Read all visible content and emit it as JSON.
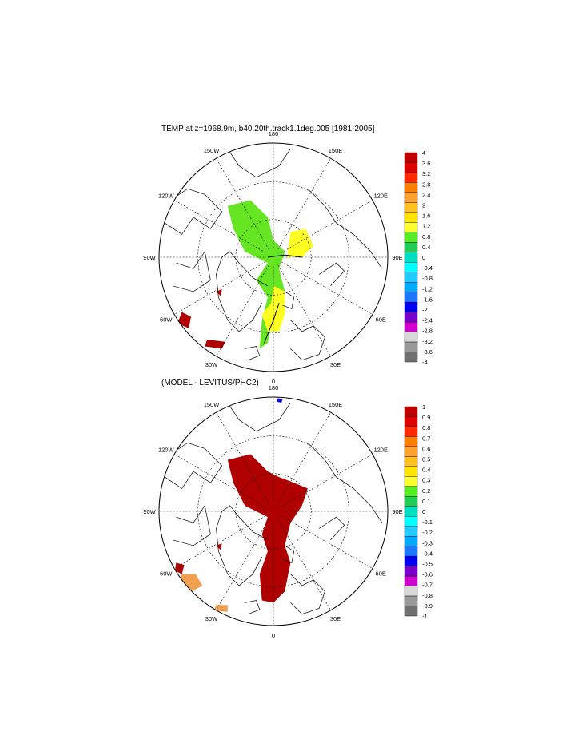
{
  "panels": [
    {
      "id": "top",
      "title": "TEMP at z=1968.9m, b40.20th.track1.1deg.005 [1981-2005]",
      "longitude_labels": [
        "180",
        "150E",
        "120E",
        "90E",
        "60E",
        "30E",
        "0",
        "30W",
        "60W",
        "90W",
        "120W",
        "150W"
      ],
      "colorbar": {
        "tick_labels": [
          "4",
          "3.6",
          "3.2",
          "2.8",
          "2.4",
          "2",
          "1.6",
          "1.2",
          "0.8",
          "0.4",
          "0",
          "-0.4",
          "-0.8",
          "-1.2",
          "-1.6",
          "-2",
          "-2.4",
          "-2.8",
          "-3.2",
          "-3.6",
          "-4"
        ],
        "colors": [
          "#c00000",
          "#e00000",
          "#ff2a00",
          "#ff7f00",
          "#ffa030",
          "#ffc020",
          "#ffe600",
          "#ffff30",
          "#55ee22",
          "#22cc55",
          "#00e0c0",
          "#00ffff",
          "#22ccff",
          "#00aaff",
          "#1e78ff",
          "#0000ee",
          "#7a00cc",
          "#d000d0",
          "#d8d8d8",
          "#999999",
          "#707070"
        ]
      }
    },
    {
      "id": "bottom",
      "title": "(MODEL - LEVITUS/PHC2)",
      "longitude_labels": [
        "180",
        "150E",
        "120E",
        "90E",
        "60E",
        "30E",
        "0",
        "30W",
        "60W",
        "90W",
        "120W",
        "150W"
      ],
      "colorbar": {
        "tick_labels": [
          "1",
          "0.9",
          "0.8",
          "0.7",
          "0.6",
          "0.5",
          "0.4",
          "0.3",
          "0.2",
          "0.1",
          "0",
          "-0.1",
          "-0.2",
          "-0.3",
          "-0.4",
          "-0.5",
          "-0.6",
          "-0.7",
          "-0.8",
          "-0.9",
          "-1"
        ],
        "colors": [
          "#c00000",
          "#e00000",
          "#ff2a00",
          "#ff7f00",
          "#ffa030",
          "#ffc020",
          "#ffe600",
          "#ffff30",
          "#55ee22",
          "#22cc55",
          "#00e0c0",
          "#00ffff",
          "#22ccff",
          "#00aaff",
          "#1e78ff",
          "#0000ee",
          "#7a00cc",
          "#d000d0",
          "#d8d8d8",
          "#999999",
          "#707070"
        ]
      }
    }
  ],
  "field_colors": {
    "green": "#66e622",
    "yellow": "#ffff22",
    "red": "#b00000",
    "orange": "#f0a050",
    "blue": "#0000ee"
  }
}
